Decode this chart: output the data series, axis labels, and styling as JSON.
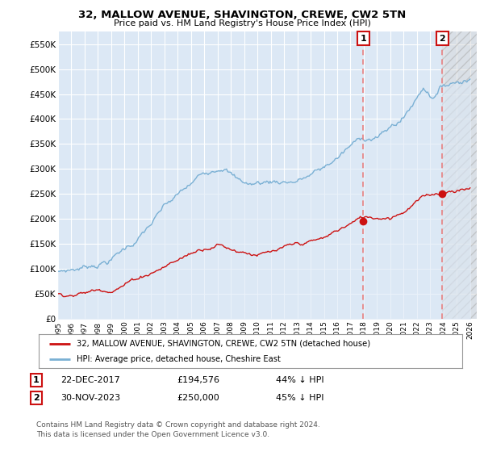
{
  "title": "32, MALLOW AVENUE, SHAVINGTON, CREWE, CW2 5TN",
  "subtitle": "Price paid vs. HM Land Registry's House Price Index (HPI)",
  "ylabel_ticks": [
    "£0",
    "£50K",
    "£100K",
    "£150K",
    "£200K",
    "£250K",
    "£300K",
    "£350K",
    "£400K",
    "£450K",
    "£500K",
    "£550K"
  ],
  "ytick_values": [
    0,
    50000,
    100000,
    150000,
    200000,
    250000,
    300000,
    350000,
    400000,
    450000,
    500000,
    550000
  ],
  "ylim": [
    0,
    575000
  ],
  "xlim_start": 1995.0,
  "xlim_end": 2026.5,
  "hpi_color": "#7ab0d4",
  "hpi_fill": "#dce8f5",
  "price_color": "#cc1111",
  "vline_color": "#e88080",
  "marker1_date": 2017.97,
  "marker1_price": 194576,
  "marker2_date": 2023.92,
  "marker2_price": 250000,
  "legend1": "32, MALLOW AVENUE, SHAVINGTON, CREWE, CW2 5TN (detached house)",
  "legend2": "HPI: Average price, detached house, Cheshire East",
  "ann1_label": "1",
  "ann1_date": "22-DEC-2017",
  "ann1_price": "£194,576",
  "ann1_pct": "44% ↓ HPI",
  "ann2_label": "2",
  "ann2_date": "30-NOV-2023",
  "ann2_price": "£250,000",
  "ann2_pct": "45% ↓ HPI",
  "footer": "Contains HM Land Registry data © Crown copyright and database right 2024.\nThis data is licensed under the Open Government Licence v3.0.",
  "plot_bg": "#dce8f5",
  "hatch_bg": "#e8e8e8"
}
